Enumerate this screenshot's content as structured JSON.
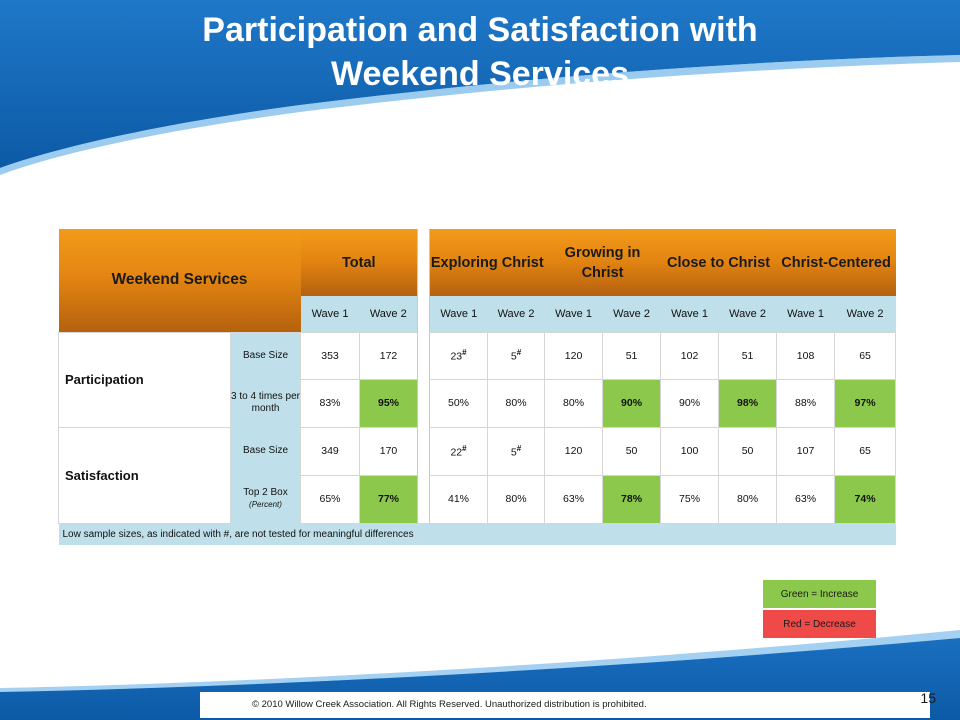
{
  "title": {
    "line1": "Participation and Satisfaction with",
    "line2": "Weekend Services"
  },
  "table": {
    "corner_label": "Weekend Services",
    "groups": [
      {
        "label": "Total"
      },
      {
        "label": "Exploring Christ"
      },
      {
        "label": "Growing in Christ"
      },
      {
        "label": "Close to Christ"
      },
      {
        "label": "Christ-Centered"
      }
    ],
    "wave_labels": {
      "w1": "Wave 1",
      "w2": "Wave 2"
    },
    "sections": [
      {
        "label": "Participation",
        "rows": [
          {
            "sub_label": "Base Size",
            "cells": [
              "353",
              "172",
              "23",
              "5",
              "120",
              "51",
              "102",
              "51",
              "108",
              "65"
            ],
            "low_sample_marker": "#"
          },
          {
            "sub_label": "3 to 4 times per month",
            "cells": [
              "83%",
              "95%",
              "50%",
              "80%",
              "80%",
              "90%",
              "90%",
              "98%",
              "88%",
              "97%"
            ]
          }
        ]
      },
      {
        "label": "Satisfaction",
        "rows": [
          {
            "sub_label": "Base Size",
            "cells": [
              "349",
              "170",
              "22",
              "5",
              "120",
              "50",
              "100",
              "50",
              "107",
              "65"
            ],
            "low_sample_marker": "#"
          },
          {
            "sub_label": "Top 2 Box",
            "sub_label_note": "(Percent)",
            "cells": [
              "65%",
              "77%",
              "41%",
              "80%",
              "63%",
              "78%",
              "75%",
              "80%",
              "63%",
              "74%"
            ]
          }
        ]
      }
    ],
    "highlights": {
      "increase_color": "#8cc84b",
      "decrease_color": "#f04a48"
    },
    "note": "Low sample sizes, as indicated with #, are not tested for meaningful differences"
  },
  "legend": {
    "green": "Green = Increase",
    "red": "Red = Decrease"
  },
  "footer": {
    "copyright": "© 2010 Willow Creek Association.  All Rights Reserved.  Unauthorized distribution is prohibited.",
    "page_number": "15"
  }
}
